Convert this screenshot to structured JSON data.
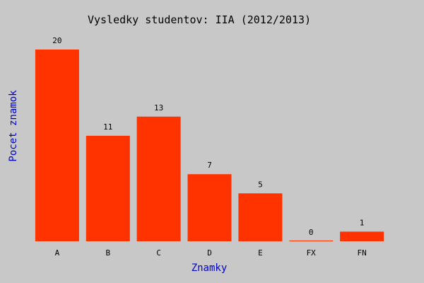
{
  "chart_data": {
    "type": "bar",
    "title": "Vysledky studentov: IIA (2012/2013)",
    "xlabel": "Znamky",
    "ylabel": "Pocet znamok",
    "categories": [
      "A",
      "B",
      "C",
      "D",
      "E",
      "FX",
      "FN"
    ],
    "values": [
      20,
      11,
      13,
      7,
      5,
      0,
      1
    ],
    "ylim": [
      0,
      20
    ],
    "grid": false,
    "legend": "none",
    "bar_color": "#ff3300",
    "background_color": "#c8c8c8",
    "axis_label_color": "#0000cc"
  }
}
